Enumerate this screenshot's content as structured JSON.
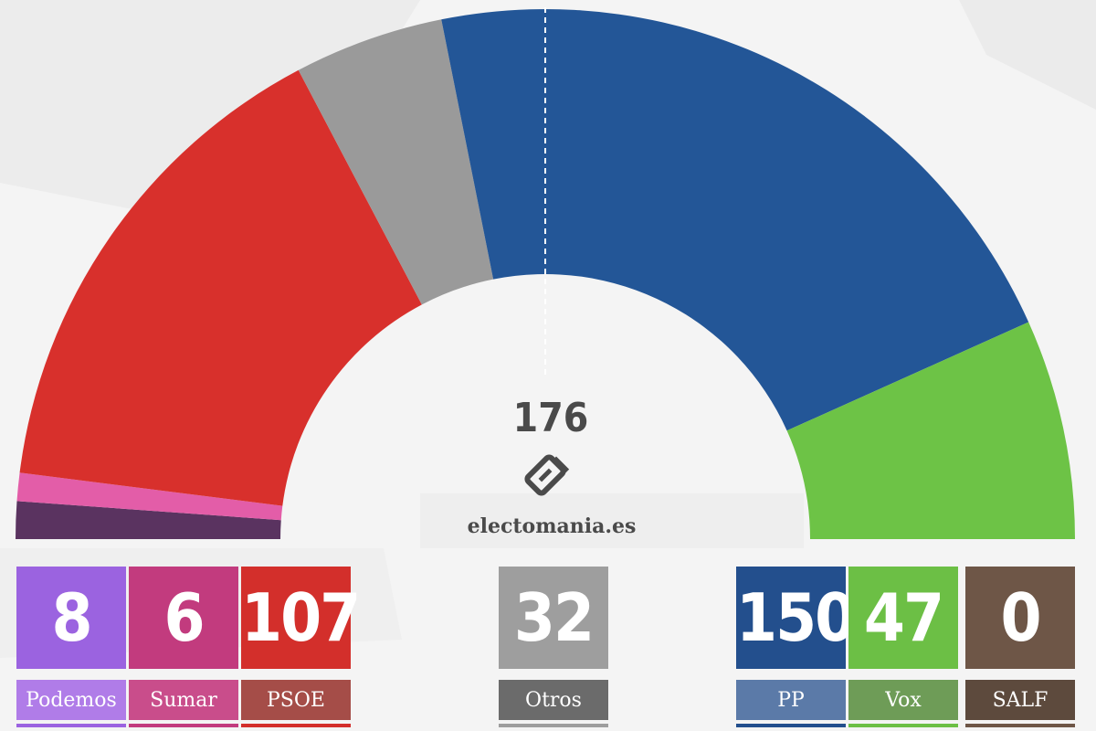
{
  "brand": {
    "name": "electomania.es"
  },
  "chart_data": {
    "type": "pie",
    "variant": "semicircle-parliament",
    "majority": 176,
    "parties": [
      {
        "name": "Podemos",
        "seats": 8,
        "color": "#5a3360",
        "box_color": "#9b63e0",
        "label_color": "#b07ce8"
      },
      {
        "name": "Sumar",
        "seats": 6,
        "color": "#e35da8",
        "box_color": "#c23b7e",
        "label_color": "#c94d8b"
      },
      {
        "name": "PSOE",
        "seats": 107,
        "color": "#d8302c",
        "box_color": "#d32f2b",
        "label_color": "#a54d48"
      },
      {
        "name": "Otros",
        "seats": 32,
        "color": "#9a9a9a",
        "box_color": "#9e9e9e",
        "label_color": "#6b6b6b"
      },
      {
        "name": "PP",
        "seats": 150,
        "color": "#235697",
        "box_color": "#234f8d",
        "label_color": "#5b7aa8"
      },
      {
        "name": "Vox",
        "seats": 47,
        "color": "#6dc346",
        "box_color": "#6cbf45",
        "label_color": "#6e9c57"
      },
      {
        "name": "SALF",
        "seats": 0,
        "color": "#6b5444",
        "box_color": "#6e5647",
        "label_color": "#5d4a3d"
      }
    ]
  }
}
